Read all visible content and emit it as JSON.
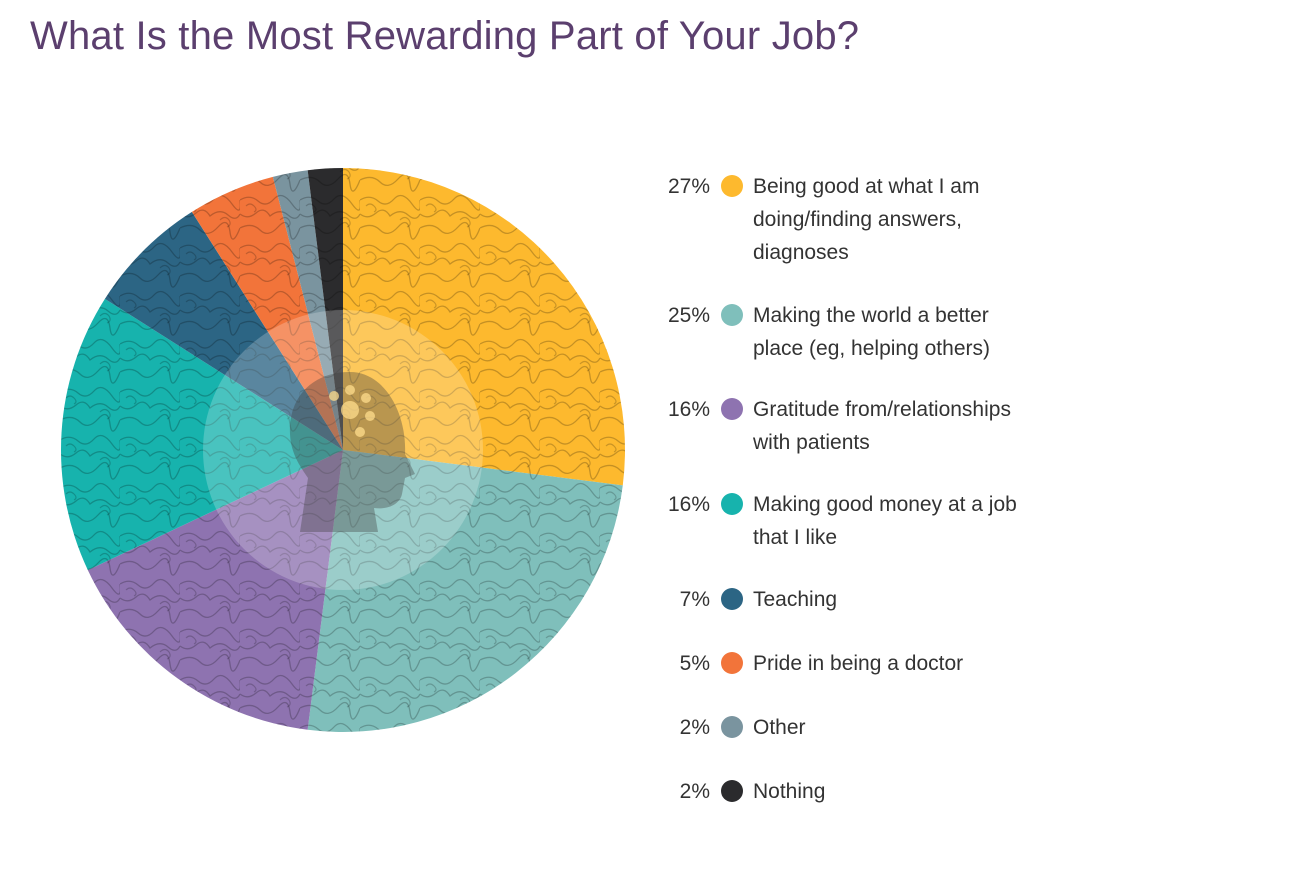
{
  "header": {
    "title": "What Is the Most Rewarding Part of Your Job?"
  },
  "chart_data": {
    "type": "pie",
    "title": "What Is the Most Rewarding Part of Your Job?",
    "categories": [
      "Being good at what I am doing/finding answers, diagnoses",
      "Making the world a better place (eg, helping others)",
      "Gratitude from/relationships with patients",
      "Making good money at a job that I like",
      "Teaching",
      "Pride in being a doctor",
      "Other",
      "Nothing"
    ],
    "values": [
      27,
      25,
      16,
      16,
      7,
      5,
      2,
      2
    ],
    "unit": "%",
    "colors": [
      "#fdb92e",
      "#7fbfbb",
      "#8e73b0",
      "#17b3ad",
      "#2c6584",
      "#f2743a",
      "#7a949f",
      "#2b2b2d"
    ],
    "start_angle": "12 o'clock, clockwise",
    "legend_position": "right",
    "center_icon": "head-silhouette-with-gear"
  },
  "legend": {
    "items": [
      {
        "pct": "27%",
        "label_lines": [
          "Being good at what I am",
          "doing/finding answers,",
          "diagnoses"
        ],
        "color": "#fdb92e"
      },
      {
        "pct": "25%",
        "label_lines": [
          "Making the world a better",
          "place (eg, helping others)"
        ],
        "color": "#7fbfbb"
      },
      {
        "pct": "16%",
        "label_lines": [
          "Gratitude from/relationships",
          "with patients"
        ],
        "color": "#8e73b0"
      },
      {
        "pct": "16%",
        "label_lines": [
          "Making good money at a job",
          "that I like"
        ],
        "color": "#17b3ad"
      },
      {
        "pct": "7%",
        "label_lines": [
          "Teaching"
        ],
        "color": "#2c6584"
      },
      {
        "pct": "5%",
        "label_lines": [
          "Pride in being a doctor"
        ],
        "color": "#f2743a"
      },
      {
        "pct": "2%",
        "label_lines": [
          "Other"
        ],
        "color": "#7a949f"
      },
      {
        "pct": "2%",
        "label_lines": [
          "Nothing"
        ],
        "color": "#2b2b2d"
      }
    ]
  }
}
